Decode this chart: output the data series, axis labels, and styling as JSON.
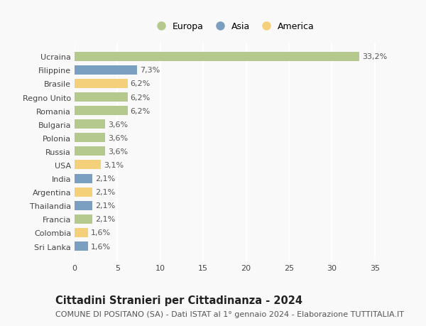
{
  "countries": [
    "Ucraina",
    "Filippine",
    "Brasile",
    "Regno Unito",
    "Romania",
    "Bulgaria",
    "Polonia",
    "Russia",
    "USA",
    "India",
    "Argentina",
    "Thailandia",
    "Francia",
    "Colombia",
    "Sri Lanka"
  ],
  "values": [
    33.2,
    7.3,
    6.2,
    6.2,
    6.2,
    3.6,
    3.6,
    3.6,
    3.1,
    2.1,
    2.1,
    2.1,
    2.1,
    1.6,
    1.6
  ],
  "labels": [
    "33,2%",
    "7,3%",
    "6,2%",
    "6,2%",
    "6,2%",
    "3,6%",
    "3,6%",
    "3,6%",
    "3,1%",
    "2,1%",
    "2,1%",
    "2,1%",
    "2,1%",
    "1,6%",
    "1,6%"
  ],
  "continents": [
    "Europa",
    "Asia",
    "America",
    "Europa",
    "Europa",
    "Europa",
    "Europa",
    "Europa",
    "America",
    "Asia",
    "America",
    "Asia",
    "Europa",
    "America",
    "Asia"
  ],
  "color_europa": "#b5c98e",
  "color_asia": "#7b9fc0",
  "color_america": "#f5d07a",
  "legend_order": [
    "Europa",
    "Asia",
    "America"
  ],
  "legend_colors": {
    "Europa": "#b5c98e",
    "Asia": "#7b9fc0",
    "America": "#f5d07a"
  },
  "title": "Cittadini Stranieri per Cittadinanza - 2024",
  "subtitle": "COMUNE DI POSITANO (SA) - Dati ISTAT al 1° gennaio 2024 - Elaborazione TUTTITALIA.IT",
  "xlim": [
    0,
    37
  ],
  "xticks": [
    0,
    5,
    10,
    15,
    20,
    25,
    30,
    35
  ],
  "background_color": "#f9f9f9",
  "grid_color": "#ffffff",
  "bar_height": 0.68,
  "title_fontsize": 10.5,
  "subtitle_fontsize": 8,
  "tick_fontsize": 8,
  "label_fontsize": 8,
  "legend_fontsize": 9
}
